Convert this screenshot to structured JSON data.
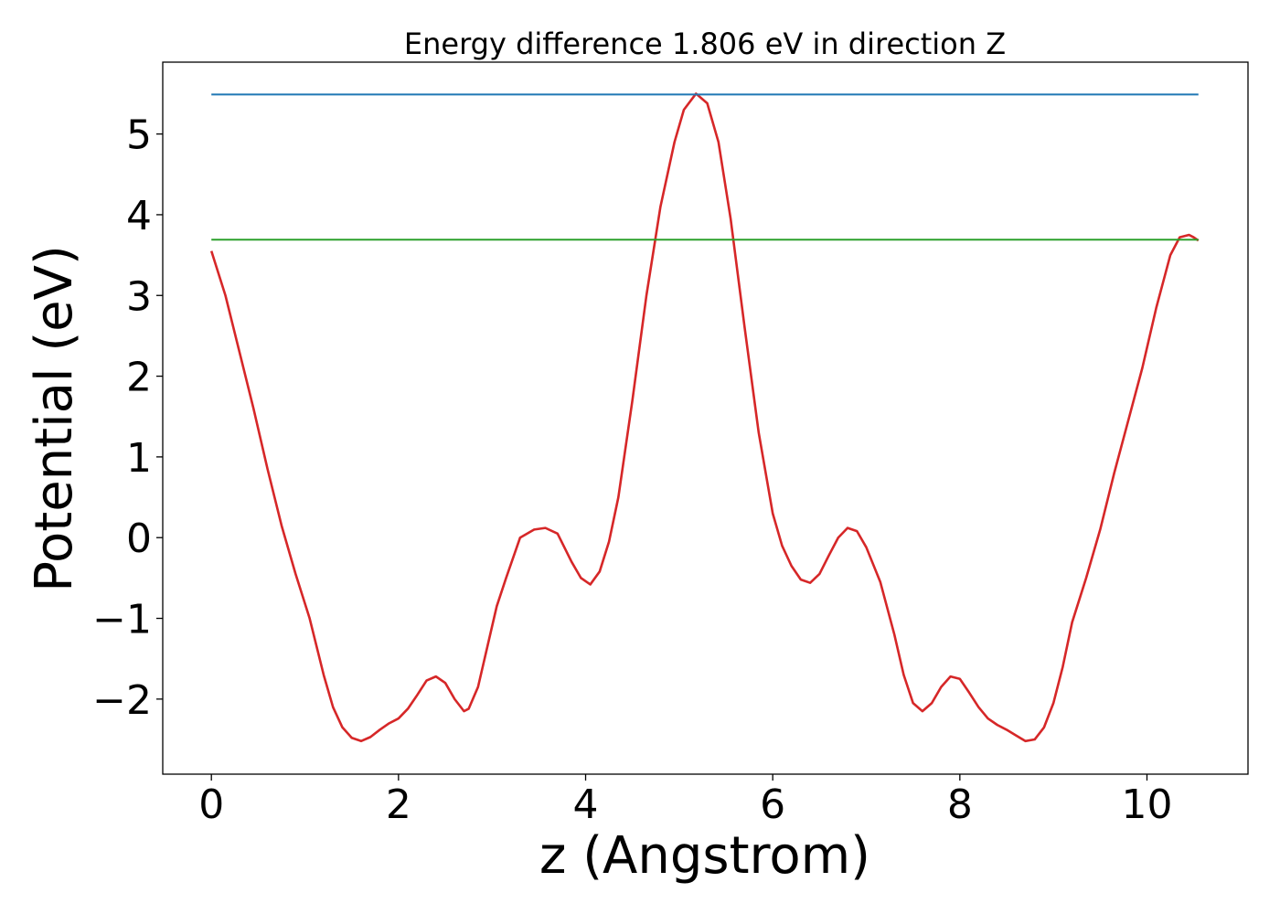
{
  "chart_data": {
    "type": "line",
    "title": "Energy difference 1.806 eV in direction Z",
    "xlabel": "z (Angstrom)",
    "ylabel": "Potential (eV)",
    "xlim": [
      -0.52,
      11.08
    ],
    "ylim": [
      -2.93,
      5.89
    ],
    "xticks": [
      0,
      2,
      4,
      6,
      8,
      10
    ],
    "xtick_labels": [
      "0",
      "2",
      "4",
      "6",
      "8",
      "10"
    ],
    "yticks": [
      -2,
      -1,
      0,
      1,
      2,
      3,
      4,
      5
    ],
    "ytick_labels": [
      "−2",
      "−1",
      "0",
      "1",
      "2",
      "3",
      "4",
      "5"
    ],
    "grid": false,
    "series": [
      {
        "color": "#d62728",
        "x": [
          0.0,
          0.15,
          0.3,
          0.45,
          0.6,
          0.75,
          0.9,
          1.05,
          1.2,
          1.3,
          1.4,
          1.5,
          1.6,
          1.7,
          1.8,
          1.9,
          2.0,
          2.1,
          2.2,
          2.3,
          2.4,
          2.5,
          2.6,
          2.7,
          2.75,
          2.85,
          2.95,
          3.05,
          3.15,
          3.3,
          3.45,
          3.57,
          3.7,
          3.85,
          3.95,
          4.05,
          4.15,
          4.25,
          4.35,
          4.5,
          4.65,
          4.8,
          4.95,
          5.05,
          5.18,
          5.3,
          5.42,
          5.55,
          5.7,
          5.85,
          6.0,
          6.1,
          6.2,
          6.3,
          6.4,
          6.5,
          6.6,
          6.7,
          6.8,
          6.9,
          7.0,
          7.15,
          7.3,
          7.4,
          7.5,
          7.6,
          7.7,
          7.8,
          7.9,
          8.0,
          8.1,
          8.2,
          8.3,
          8.4,
          8.5,
          8.6,
          8.7,
          8.8,
          8.9,
          9.0,
          9.1,
          9.2,
          9.35,
          9.5,
          9.65,
          9.8,
          9.95,
          10.1,
          10.25,
          10.35,
          10.45,
          10.5,
          10.55
        ],
        "values": [
          3.55,
          3.0,
          2.3,
          1.6,
          0.85,
          0.15,
          -0.45,
          -1.0,
          -1.7,
          -2.1,
          -2.35,
          -2.48,
          -2.52,
          -2.47,
          -2.38,
          -2.3,
          -2.24,
          -2.12,
          -1.95,
          -1.77,
          -1.72,
          -1.8,
          -2.0,
          -2.15,
          -2.12,
          -1.85,
          -1.35,
          -0.85,
          -0.5,
          0.0,
          0.1,
          0.12,
          0.05,
          -0.3,
          -0.5,
          -0.58,
          -0.42,
          -0.05,
          0.5,
          1.7,
          3.0,
          4.1,
          4.9,
          5.3,
          5.5,
          5.38,
          4.9,
          3.95,
          2.6,
          1.3,
          0.3,
          -0.1,
          -0.35,
          -0.52,
          -0.56,
          -0.45,
          -0.22,
          0.0,
          0.12,
          0.08,
          -0.12,
          -0.55,
          -1.2,
          -1.7,
          -2.05,
          -2.15,
          -2.05,
          -1.85,
          -1.72,
          -1.75,
          -1.92,
          -2.1,
          -2.24,
          -2.32,
          -2.38,
          -2.45,
          -2.52,
          -2.5,
          -2.35,
          -2.05,
          -1.6,
          -1.05,
          -0.5,
          0.1,
          0.8,
          1.45,
          2.1,
          2.85,
          3.5,
          3.72,
          3.75,
          3.72,
          3.68
        ]
      },
      {
        "color": "#1f77b4",
        "x": [
          0.0,
          10.55
        ],
        "values": [
          5.49,
          5.49
        ]
      },
      {
        "color": "#2ca02c",
        "x": [
          0.0,
          10.55
        ],
        "values": [
          3.69,
          3.69
        ]
      }
    ]
  }
}
